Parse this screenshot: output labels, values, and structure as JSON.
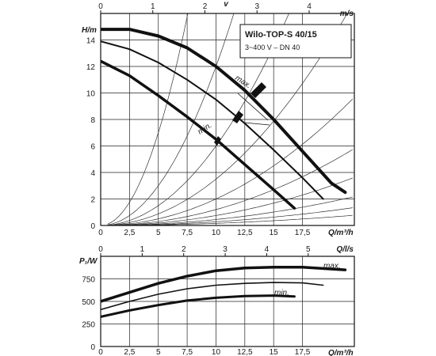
{
  "chart_data": [
    {
      "type": "line",
      "title": "Wilo-TOP-S 40/15",
      "subtitle": "3~400 V – DN 40",
      "xlabel": "Q/m³/h",
      "ylabel": "H/m",
      "top_axis_label": "v",
      "top_axis_unit": "m/s",
      "xlim": [
        0,
        22
      ],
      "ylim": [
        0,
        16
      ],
      "x_ticks": [
        "0",
        "2,5",
        "5",
        "7,5",
        "10",
        "12,5",
        "15",
        "17,5"
      ],
      "y_ticks": [
        "0",
        "2",
        "4",
        "6",
        "8",
        "10",
        "12",
        "14"
      ],
      "top_ticks": [
        "0",
        "1",
        "2",
        "3",
        "4"
      ],
      "series": [
        {
          "name": "max.",
          "x": [
            0,
            2.5,
            5,
            7.5,
            10,
            12.5,
            15,
            17.5,
            20,
            21.2
          ],
          "y": [
            14.8,
            14.8,
            14.3,
            13.4,
            12.0,
            10.2,
            8.0,
            5.6,
            3.2,
            2.5
          ]
        },
        {
          "name": "",
          "x": [
            0,
            2.5,
            5,
            7.5,
            10,
            12.5,
            15,
            17.5,
            19.3
          ],
          "y": [
            13.9,
            13.3,
            12.3,
            11.0,
            9.5,
            7.7,
            5.7,
            3.6,
            2.0
          ]
        },
        {
          "name": "min.",
          "x": [
            0,
            2.5,
            5,
            7.5,
            10,
            12.5,
            15,
            16.8
          ],
          "y": [
            12.4,
            11.3,
            9.8,
            8.2,
            6.5,
            4.6,
            2.7,
            1.3
          ]
        }
      ],
      "max_label": "max.",
      "min_label": "min."
    },
    {
      "type": "line",
      "xlabel": "Q/m³/h",
      "ylabel": "P₁/W",
      "top_axis_unit": "Q/l/s",
      "xlim": [
        0,
        22
      ],
      "ylim": [
        0,
        1000
      ],
      "x_ticks": [
        "0",
        "2,5",
        "5",
        "7,5",
        "10",
        "12,5",
        "15",
        "17,5"
      ],
      "y_ticks": [
        "0",
        "250",
        "500",
        "750"
      ],
      "top_ticks": [
        "0",
        "1",
        "2",
        "3",
        "4",
        "5"
      ],
      "series": [
        {
          "name": "max.",
          "x": [
            0,
            2.5,
            5,
            7.5,
            10,
            12.5,
            15,
            17.5,
            21.2
          ],
          "y": [
            500,
            600,
            700,
            780,
            840,
            870,
            880,
            880,
            850
          ]
        },
        {
          "name": "",
          "x": [
            0,
            2.5,
            5,
            7.5,
            10,
            12.5,
            15,
            17.5,
            19.3
          ],
          "y": [
            410,
            500,
            580,
            640,
            680,
            700,
            710,
            705,
            680
          ]
        },
        {
          "name": "min.",
          "x": [
            0,
            2.5,
            5,
            7.5,
            10,
            12.5,
            15,
            16.8
          ],
          "y": [
            330,
            400,
            460,
            510,
            540,
            560,
            565,
            555
          ]
        }
      ],
      "max_label": "max.",
      "min_label": "min."
    }
  ]
}
